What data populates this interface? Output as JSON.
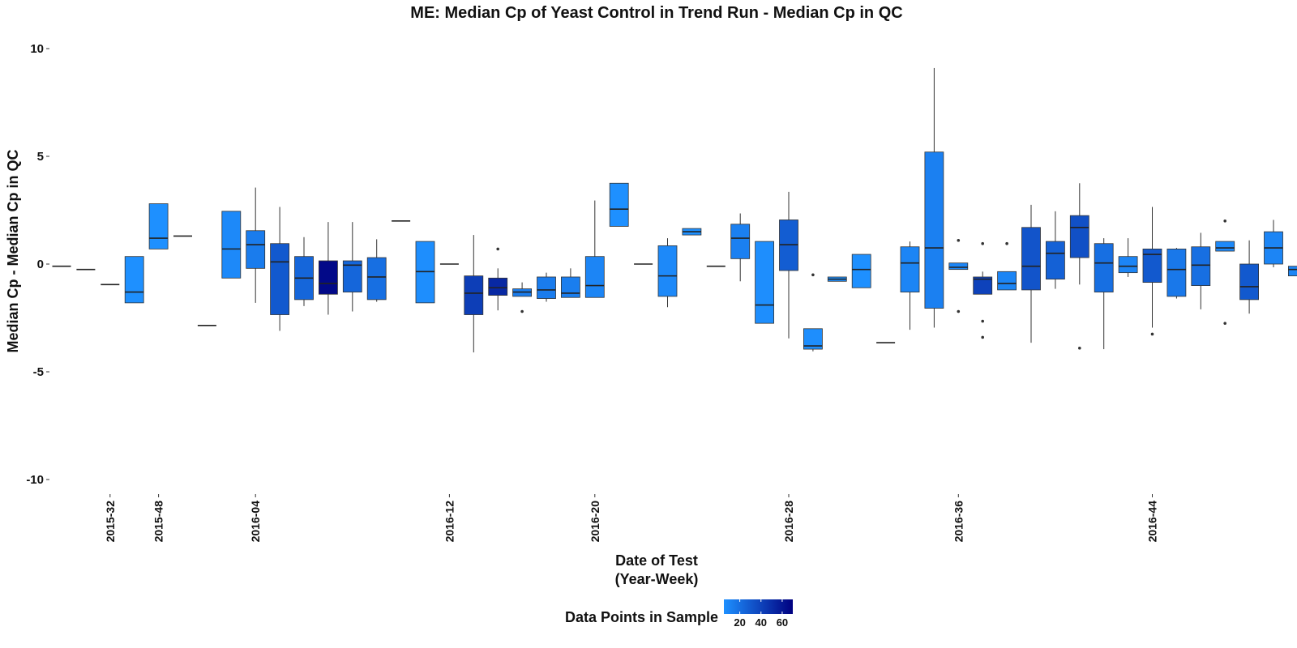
{
  "chart_data": {
    "type": "box",
    "title": "ME: Median Cp of Yeast Control in Trend Run - Median Cp in QC",
    "xlabel": [
      "Date of Test",
      "(Year-Week)"
    ],
    "ylabel": "Median Cp - Median Cp in QC",
    "ylim": [
      -10,
      10
    ],
    "yticks": [
      -10,
      -5,
      0,
      5,
      10
    ],
    "grid": false,
    "x_range": [
      0,
      53
    ],
    "x_tick_labels": [
      {
        "x": 2.0,
        "label": "2015-32"
      },
      {
        "x": 4.0,
        "label": "2015-48"
      },
      {
        "x": 8.0,
        "label": "2016-04"
      },
      {
        "x": 16.0,
        "label": "2016-12"
      },
      {
        "x": 22.0,
        "label": "2016-20"
      },
      {
        "x": 30.0,
        "label": "2016-28"
      },
      {
        "x": 37.0,
        "label": "2016-36"
      },
      {
        "x": 45.0,
        "label": "2016-44"
      }
    ],
    "legend": {
      "title": "Data Points in Sample",
      "ticks": [
        "20",
        "40",
        "60"
      ],
      "tick_values": [
        20,
        40,
        60
      ],
      "range": [
        5,
        70
      ],
      "color_low": "#1e90ff",
      "color_high": "#000080",
      "placement": "bottom"
    },
    "boxes": [
      {
        "x": 0.0,
        "q1": -0.1,
        "median": -0.1,
        "q3": -0.1,
        "lo": -0.1,
        "hi": -0.1,
        "n": 1
      },
      {
        "x": 1.0,
        "q1": -0.25,
        "median": -0.25,
        "q3": -0.25,
        "lo": -0.25,
        "hi": -0.25,
        "n": 1
      },
      {
        "x": 2.0,
        "q1": -0.95,
        "median": -0.95,
        "q3": -0.95,
        "lo": -0.95,
        "hi": -0.95,
        "n": 1
      },
      {
        "x": 3.0,
        "q1": -1.8,
        "median": -1.3,
        "q3": 0.35,
        "lo": -1.8,
        "hi": 0.35,
        "n": 5
      },
      {
        "x": 4.0,
        "q1": 0.7,
        "median": 1.2,
        "q3": 2.8,
        "lo": 0.7,
        "hi": 2.8,
        "n": 5
      },
      {
        "x": 5.0,
        "q1": 1.3,
        "median": 1.3,
        "q3": 1.3,
        "lo": 1.3,
        "hi": 1.3,
        "n": 1
      },
      {
        "x": 6.0,
        "q1": -2.85,
        "median": -2.85,
        "q3": -2.85,
        "lo": -2.85,
        "hi": -2.85,
        "n": 1
      },
      {
        "x": 7.0,
        "q1": -0.65,
        "median": 0.7,
        "q3": 2.45,
        "lo": -0.65,
        "hi": 2.45,
        "n": 8
      },
      {
        "x": 8.0,
        "q1": -0.2,
        "median": 0.9,
        "q3": 1.55,
        "lo": -1.8,
        "hi": 3.55,
        "n": 14
      },
      {
        "x": 9.0,
        "q1": -2.35,
        "median": 0.1,
        "q3": 0.95,
        "lo": -3.1,
        "hi": 2.65,
        "n": 30
      },
      {
        "x": 10.0,
        "q1": -1.65,
        "median": -0.65,
        "q3": 0.35,
        "lo": -1.95,
        "hi": 1.25,
        "n": 24
      },
      {
        "x": 11.0,
        "q1": -1.4,
        "median": -0.9,
        "q3": 0.15,
        "lo": -2.35,
        "hi": 1.95,
        "n": 66
      },
      {
        "x": 12.0,
        "q1": -1.3,
        "median": -0.05,
        "q3": 0.15,
        "lo": -2.2,
        "hi": 1.95,
        "n": 24
      },
      {
        "x": 13.0,
        "q1": -1.65,
        "median": -0.6,
        "q3": 0.3,
        "lo": -1.75,
        "hi": 1.15,
        "n": 20
      },
      {
        "x": 14.0,
        "q1": 2.0,
        "median": 2.0,
        "q3": 2.0,
        "lo": 2.0,
        "hi": 2.0,
        "n": 1
      },
      {
        "x": 15.0,
        "q1": -1.8,
        "median": -0.35,
        "q3": 1.05,
        "lo": -1.8,
        "hi": 1.05,
        "n": 6
      },
      {
        "x": 16.0,
        "q1": 0.0,
        "median": 0.0,
        "q3": 0.0,
        "lo": 0.0,
        "hi": 0.0,
        "n": 1
      },
      {
        "x": 17.0,
        "q1": -2.35,
        "median": -1.35,
        "q3": -0.55,
        "lo": -4.1,
        "hi": 1.35,
        "n": 42
      },
      {
        "x": 18.0,
        "q1": -1.45,
        "median": -1.1,
        "q3": -0.65,
        "lo": -2.15,
        "hi": -0.2,
        "n": 52,
        "outliers": [
          0.7
        ]
      },
      {
        "x": 19.0,
        "q1": -1.5,
        "median": -1.3,
        "q3": -1.15,
        "lo": -1.5,
        "hi": -0.85,
        "n": 14,
        "outliers": [
          -2.2
        ]
      },
      {
        "x": 20.0,
        "q1": -1.6,
        "median": -1.2,
        "q3": -0.6,
        "lo": -1.75,
        "hi": -0.4,
        "n": 14
      },
      {
        "x": 21.0,
        "q1": -1.55,
        "median": -1.35,
        "q3": -0.6,
        "lo": -1.55,
        "hi": -0.2,
        "n": 13
      },
      {
        "x": 22.0,
        "q1": -1.55,
        "median": -1.0,
        "q3": 0.35,
        "lo": -1.55,
        "hi": 2.95,
        "n": 10
      },
      {
        "x": 23.0,
        "q1": 1.75,
        "median": 2.55,
        "q3": 3.75,
        "lo": 1.75,
        "hi": 3.75,
        "n": 5
      },
      {
        "x": 24.0,
        "q1": 0.0,
        "median": 0.0,
        "q3": 0.0,
        "lo": 0.0,
        "hi": 0.0,
        "n": 1
      },
      {
        "x": 25.0,
        "q1": -1.5,
        "median": -0.55,
        "q3": 0.85,
        "lo": -2.0,
        "hi": 1.2,
        "n": 8
      },
      {
        "x": 26.0,
        "q1": 1.35,
        "median": 1.5,
        "q3": 1.65,
        "lo": 1.35,
        "hi": 1.65,
        "n": 4
      },
      {
        "x": 27.0,
        "q1": -0.1,
        "median": -0.1,
        "q3": -0.1,
        "lo": -0.1,
        "hi": -0.1,
        "n": 1
      },
      {
        "x": 28.0,
        "q1": 0.25,
        "median": 1.2,
        "q3": 1.85,
        "lo": -0.8,
        "hi": 2.35,
        "n": 12
      },
      {
        "x": 29.0,
        "q1": -2.75,
        "median": -1.9,
        "q3": 1.05,
        "lo": -2.75,
        "hi": 1.05,
        "n": 6
      },
      {
        "x": 30.0,
        "q1": -0.3,
        "median": 0.9,
        "q3": 2.05,
        "lo": -3.45,
        "hi": 3.35,
        "n": 28
      },
      {
        "x": 31.0,
        "q1": -3.95,
        "median": -3.8,
        "q3": -3.0,
        "lo": -4.05,
        "hi": -3.0,
        "n": 6,
        "outliers": [
          -0.5
        ]
      },
      {
        "x": 32.0,
        "q1": -0.8,
        "median": -0.7,
        "q3": -0.6,
        "lo": -0.8,
        "hi": -0.6,
        "n": 4
      },
      {
        "x": 33.0,
        "q1": -1.1,
        "median": -0.25,
        "q3": 0.45,
        "lo": -1.1,
        "hi": 0.45,
        "n": 4
      },
      {
        "x": 34.0,
        "q1": -3.65,
        "median": -3.65,
        "q3": -3.65,
        "lo": -3.65,
        "hi": -3.65,
        "n": 1
      },
      {
        "x": 35.0,
        "q1": -1.3,
        "median": 0.05,
        "q3": 0.8,
        "lo": -3.05,
        "hi": 1.05,
        "n": 10
      },
      {
        "x": 36.0,
        "q1": -2.05,
        "median": 0.75,
        "q3": 5.2,
        "lo": -2.95,
        "hi": 9.1,
        "n": 12
      },
      {
        "x": 37.0,
        "q1": -0.25,
        "median": -0.15,
        "q3": 0.05,
        "lo": -0.25,
        "hi": 0.05,
        "n": 10,
        "outliers": [
          1.1,
          -2.2
        ]
      },
      {
        "x": 38.0,
        "q1": -1.4,
        "median": -0.7,
        "q3": -0.6,
        "lo": -1.4,
        "hi": -0.35,
        "n": 40,
        "outliers": [
          0.95,
          -2.65,
          -3.4
        ]
      },
      {
        "x": 39.0,
        "q1": -1.2,
        "median": -0.9,
        "q3": -0.35,
        "lo": -1.2,
        "hi": -0.35,
        "n": 10,
        "outliers": [
          0.95
        ]
      },
      {
        "x": 40.0,
        "q1": -1.2,
        "median": -0.1,
        "q3": 1.7,
        "lo": -3.65,
        "hi": 2.75,
        "n": 32
      },
      {
        "x": 41.0,
        "q1": -0.7,
        "median": 0.5,
        "q3": 1.05,
        "lo": -1.15,
        "hi": 2.45,
        "n": 26
      },
      {
        "x": 42.0,
        "q1": 0.3,
        "median": 1.7,
        "q3": 2.25,
        "lo": -0.95,
        "hi": 3.75,
        "n": 34,
        "outliers": [
          -3.9
        ]
      },
      {
        "x": 43.0,
        "q1": -1.3,
        "median": 0.05,
        "q3": 0.95,
        "lo": -3.95,
        "hi": 1.2,
        "n": 20
      },
      {
        "x": 44.0,
        "q1": -0.4,
        "median": -0.1,
        "q3": 0.35,
        "lo": -0.6,
        "hi": 1.2,
        "n": 10
      },
      {
        "x": 45.0,
        "q1": -0.85,
        "median": 0.45,
        "q3": 0.7,
        "lo": -2.95,
        "hi": 2.65,
        "n": 30,
        "outliers": [
          -3.25
        ]
      },
      {
        "x": 46.0,
        "q1": -1.5,
        "median": -0.25,
        "q3": 0.7,
        "lo": -1.6,
        "hi": 0.75,
        "n": 16
      },
      {
        "x": 47.0,
        "q1": -1.0,
        "median": -0.05,
        "q3": 0.8,
        "lo": -2.1,
        "hi": 1.45,
        "n": 20
      },
      {
        "x": 48.0,
        "q1": 0.6,
        "median": 0.75,
        "q3": 1.05,
        "lo": 0.6,
        "hi": 1.05,
        "n": 8,
        "outliers": [
          2.0,
          -2.75
        ]
      },
      {
        "x": 49.0,
        "q1": -1.65,
        "median": -1.05,
        "q3": 0.0,
        "lo": -2.3,
        "hi": 1.1,
        "n": 30
      },
      {
        "x": 50.0,
        "q1": 0.0,
        "median": 0.75,
        "q3": 1.5,
        "lo": -0.15,
        "hi": 2.05,
        "n": 10
      },
      {
        "x": 51.0,
        "q1": -0.55,
        "median": -0.25,
        "q3": -0.1,
        "lo": -0.55,
        "hi": -0.1,
        "n": 10
      }
    ]
  }
}
